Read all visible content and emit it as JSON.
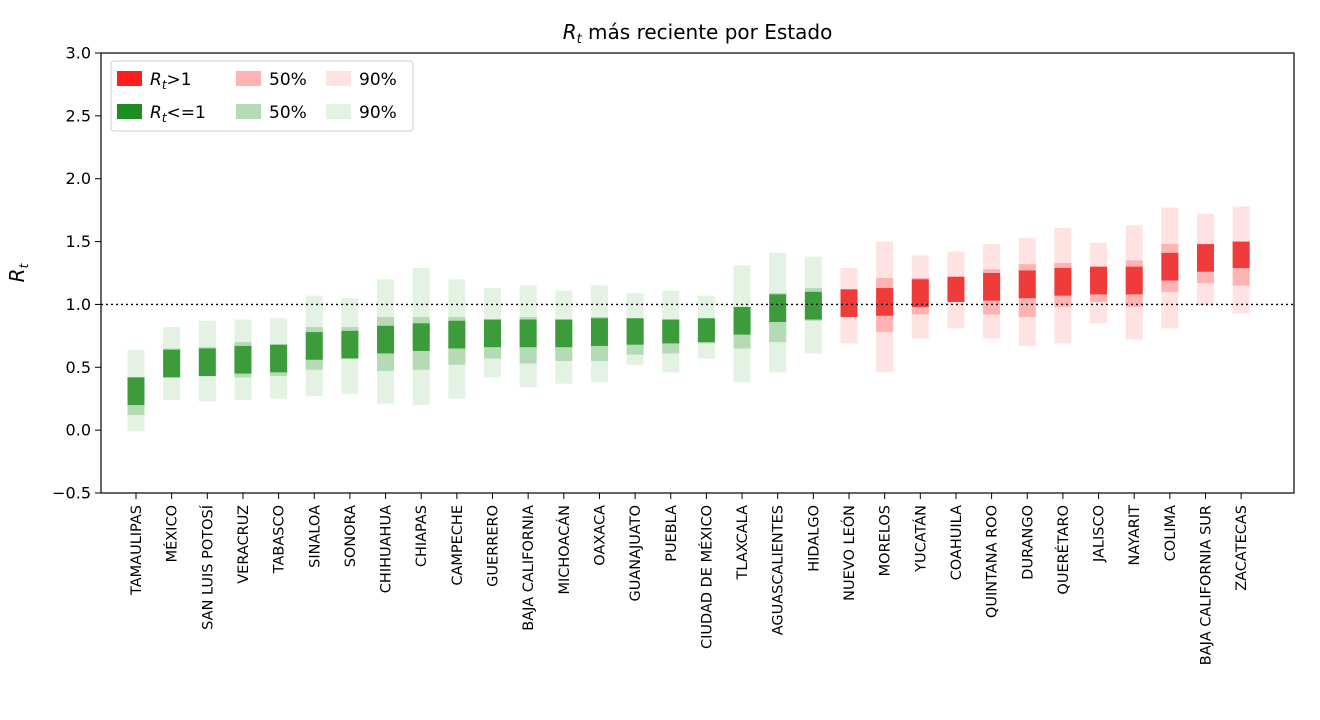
{
  "chart_data": {
    "type": "bar",
    "title_var": "R",
    "title_sub": "t",
    "title_rest": " más reciente por Estado",
    "ylabel_var": "R",
    "ylabel_sub": "t",
    "ylim": [
      -0.5,
      3.0
    ],
    "yticks": [
      -0.5,
      0.0,
      0.5,
      1.0,
      1.5,
      2.0,
      2.5,
      3.0
    ],
    "ytick_labels": [
      "−0.5",
      "0.0",
      "0.5",
      "1.0",
      "1.5",
      "2.0",
      "2.5",
      "3.0"
    ],
    "reference_line": 1.0,
    "grid": false,
    "legend_position": "top-left",
    "colors": {
      "above": "#f03b3b",
      "above_50": "#ffb3b3",
      "above_90": "#ffe3e3",
      "below": "#3c9c3c",
      "below_50": "#b4dbb4",
      "below_90": "#e3f2e3",
      "legend_above": "#ff1e1e",
      "legend_below": "#1e8c1e"
    },
    "legend": [
      {
        "label_var": "R",
        "label_sub": "t",
        "label_rest": ">1",
        "kind": "above"
      },
      {
        "label_var": "R",
        "label_sub": "t",
        "label_rest": "<=1",
        "kind": "below"
      },
      {
        "label": "50%",
        "kind": "above_50"
      },
      {
        "label": "50%",
        "kind": "below_50"
      },
      {
        "label": "90%",
        "kind": "above_90"
      },
      {
        "label": "90%",
        "kind": "below_90"
      }
    ],
    "categories": [
      "TAMAULIPAS",
      "MÉXICO",
      "SAN LUIS POTOSÍ",
      "VERACRUZ",
      "TABASCO",
      "SINALOA",
      "SONORA",
      "CHIHUAHUA",
      "CHIAPAS",
      "CAMPECHE",
      "GUERRERO",
      "BAJA CALIFORNIA",
      "MICHOACÁN",
      "OAXACA",
      "GUANAJUATO",
      "PUEBLA",
      "CIUDAD DE MÉXICO",
      "TLAXCALA",
      "AGUASCALIENTES",
      "HIDALGO",
      "NUEVO LEÓN",
      "MORELOS",
      "YUCATÁN",
      "COAHUILA",
      "QUINTANA ROO",
      "DURANGO",
      "QUERÉTARO",
      "JALISCO",
      "NAYARIT",
      "COLIMA",
      "BAJA CALIFORNIA SUR",
      "ZACATECAS"
    ],
    "series": [
      {
        "name": "Rt",
        "values": [
          0.31,
          0.53,
          0.54,
          0.56,
          0.57,
          0.67,
          0.68,
          0.72,
          0.74,
          0.76,
          0.77,
          0.77,
          0.77,
          0.78,
          0.79,
          0.8,
          0.81,
          0.87,
          0.97,
          0.99,
          1.01,
          1.02,
          1.09,
          1.13,
          1.14,
          1.16,
          1.18,
          1.19,
          1.19,
          1.3,
          1.37,
          1.4
        ]
      },
      {
        "name": "50% low",
        "values": [
          0.12,
          0.42,
          0.43,
          0.42,
          0.43,
          0.48,
          0.57,
          0.47,
          0.48,
          0.52,
          0.57,
          0.53,
          0.55,
          0.55,
          0.6,
          0.61,
          0.69,
          0.65,
          0.7,
          0.87,
          0.9,
          0.78,
          0.92,
          1.02,
          0.92,
          0.9,
          0.98,
          1.02,
          0.98,
          1.1,
          1.17,
          1.15
        ]
      },
      {
        "name": "50% high",
        "values": [
          0.42,
          0.65,
          0.66,
          0.7,
          0.68,
          0.82,
          0.82,
          0.9,
          0.9,
          0.9,
          0.88,
          0.9,
          0.88,
          0.9,
          0.89,
          0.88,
          0.89,
          0.98,
          1.09,
          1.13,
          1.12,
          1.21,
          1.21,
          1.22,
          1.28,
          1.32,
          1.33,
          1.3,
          1.35,
          1.48,
          1.48,
          1.5
        ]
      },
      {
        "name": "90% low",
        "values": [
          -0.01,
          0.24,
          0.23,
          0.24,
          0.25,
          0.27,
          0.29,
          0.21,
          0.2,
          0.25,
          0.42,
          0.34,
          0.37,
          0.38,
          0.52,
          0.46,
          0.57,
          0.38,
          0.46,
          0.61,
          0.69,
          0.46,
          0.73,
          0.81,
          0.73,
          0.67,
          0.69,
          0.85,
          0.72,
          0.81,
          0.99,
          0.93
        ]
      },
      {
        "name": "90% high",
        "values": [
          0.64,
          0.82,
          0.87,
          0.88,
          0.89,
          1.07,
          1.05,
          1.2,
          1.29,
          1.2,
          1.13,
          1.15,
          1.11,
          1.15,
          1.09,
          1.11,
          1.07,
          1.31,
          1.41,
          1.38,
          1.29,
          1.5,
          1.39,
          1.42,
          1.48,
          1.53,
          1.61,
          1.49,
          1.63,
          1.77,
          1.72,
          1.78
        ]
      }
    ]
  }
}
